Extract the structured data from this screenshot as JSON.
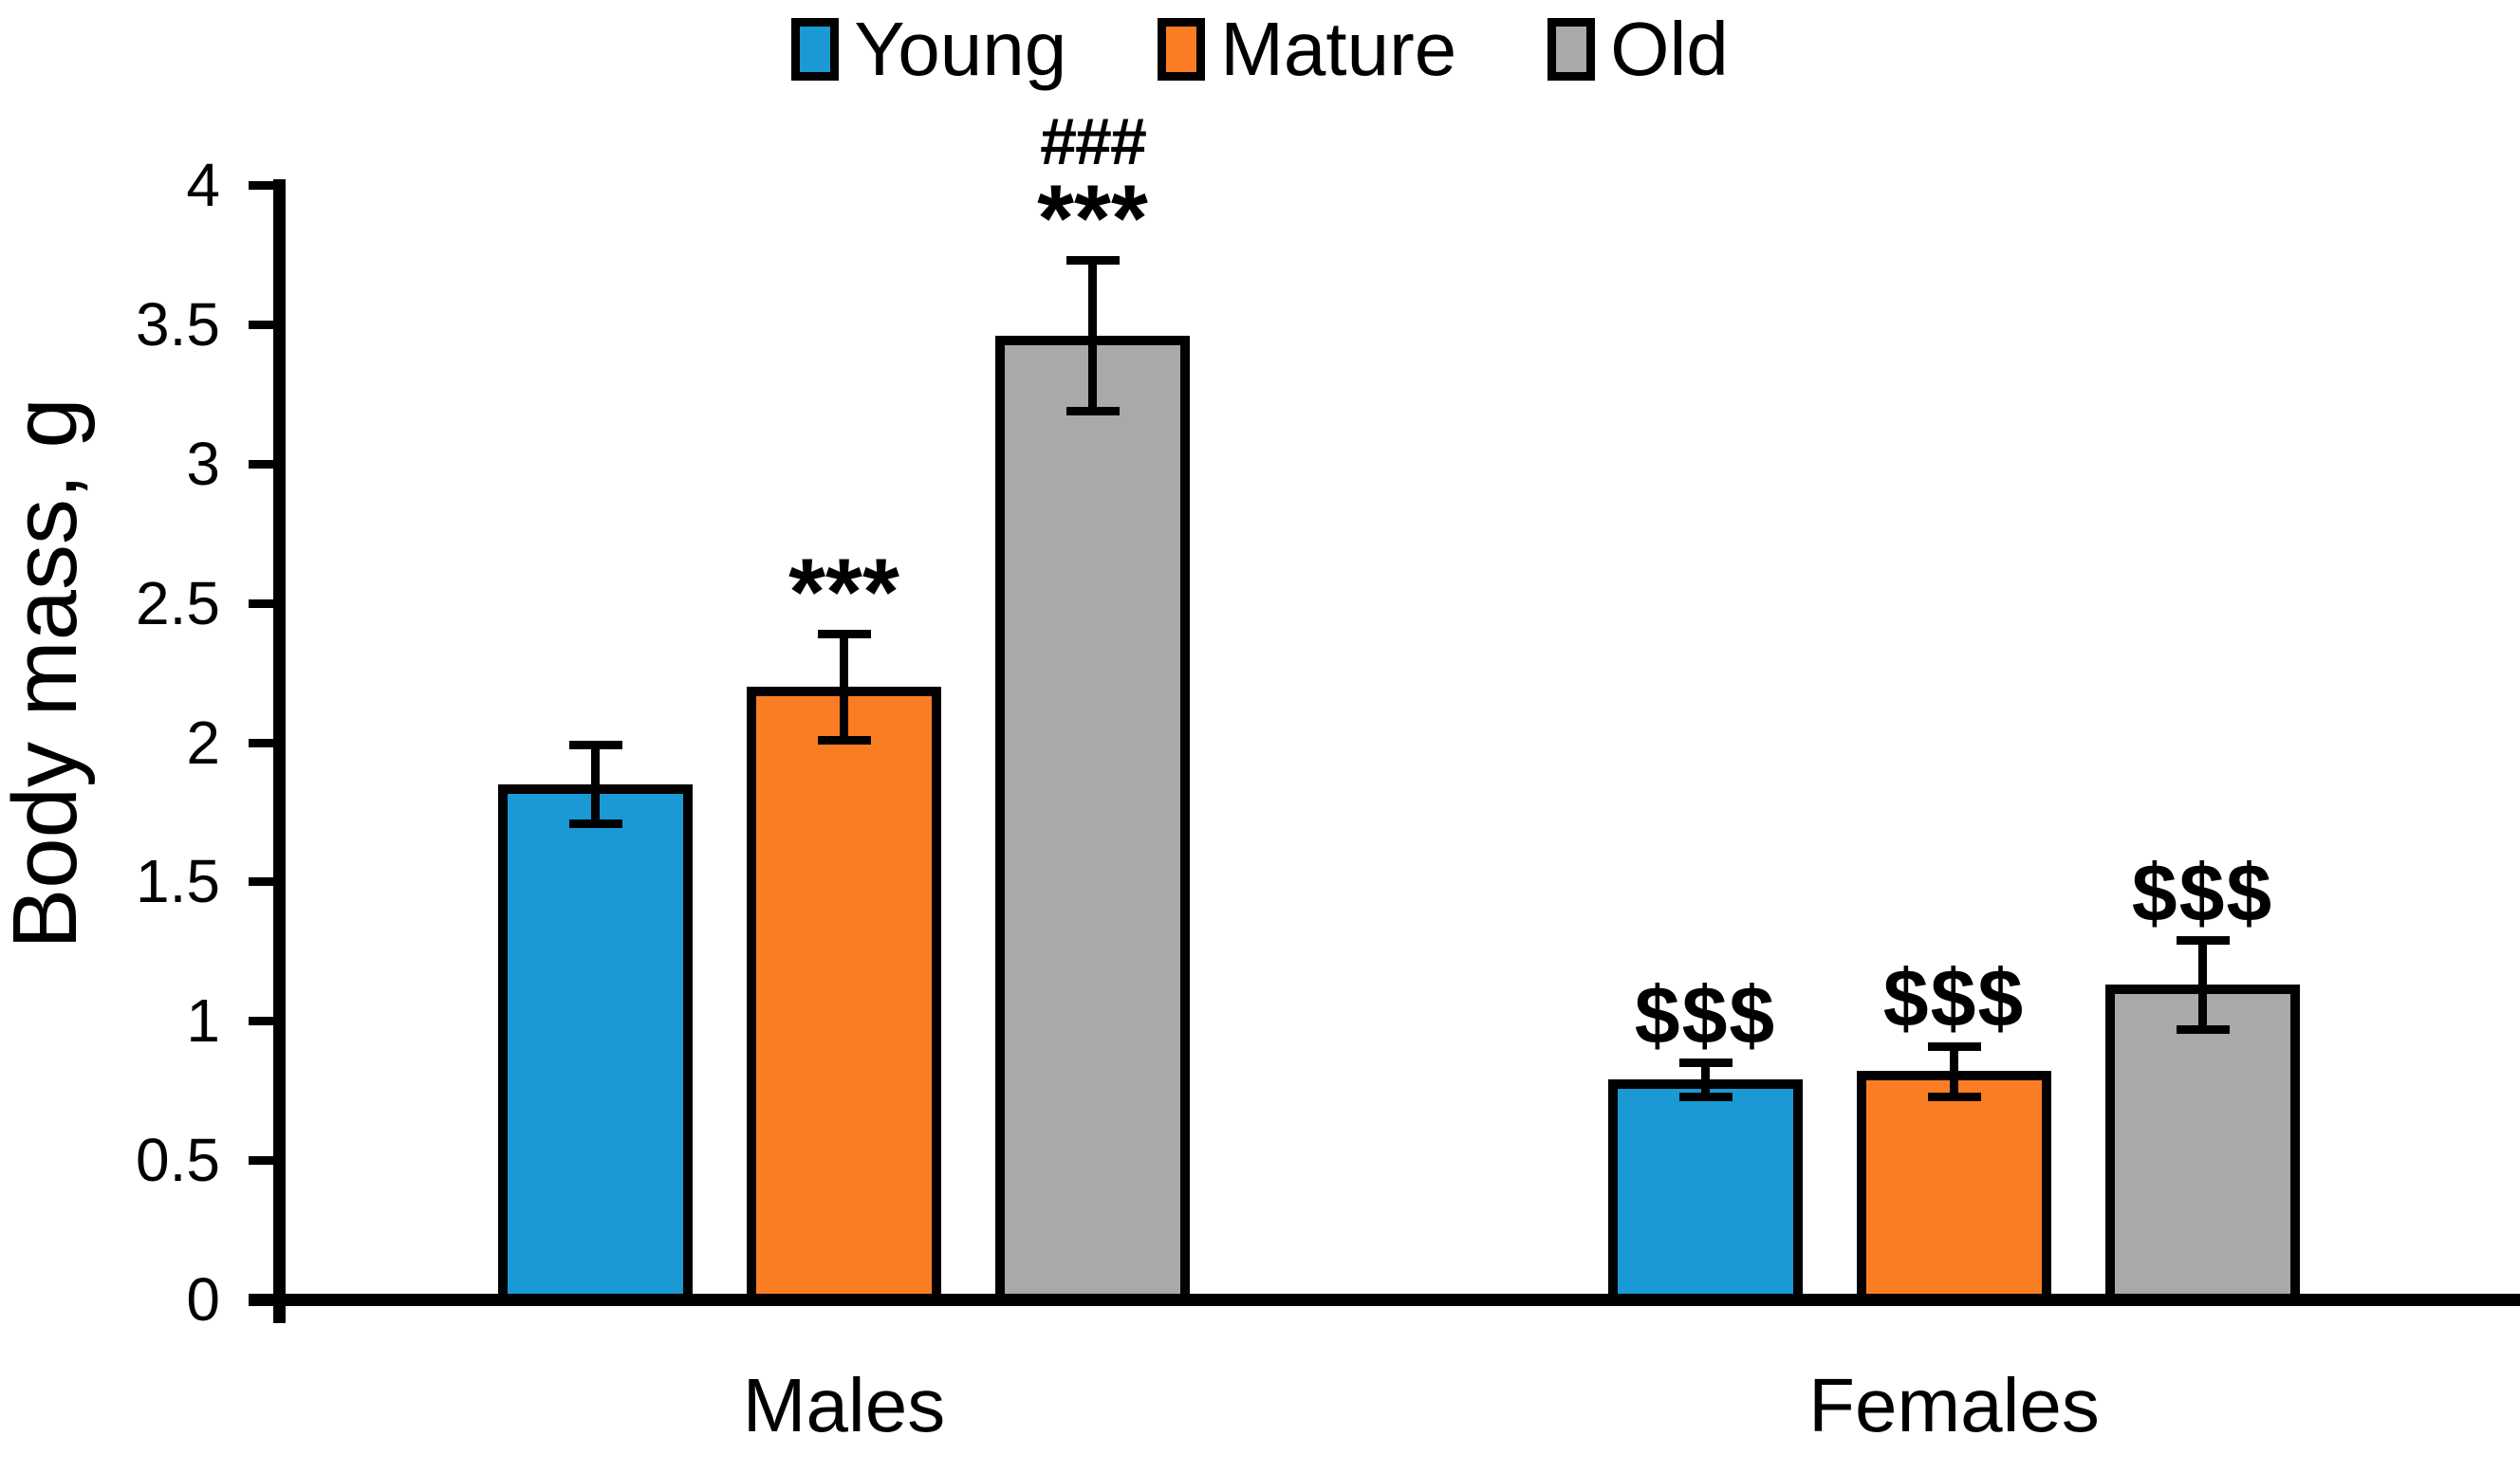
{
  "chart_data": {
    "type": "bar",
    "title": "",
    "xlabel": "",
    "ylabel": "Body mass, g",
    "ylim": [
      0,
      4
    ],
    "yticks": [
      "0",
      "0.5",
      "1",
      "1.5",
      "2",
      "2.5",
      "3",
      "3.5",
      "4"
    ],
    "grid": false,
    "legend_position": "top-center",
    "categories": [
      "Males",
      "Females"
    ],
    "series": [
      {
        "name": "Young",
        "color": "#1A99D5",
        "values": [
          1.85,
          0.79
        ],
        "errors": [
          0.14,
          0.06
        ],
        "annotations": [
          [],
          [
            "$$$"
          ]
        ]
      },
      {
        "name": "Mature",
        "color": "#FB7D23",
        "values": [
          2.2,
          0.82
        ],
        "errors": [
          0.19,
          0.09
        ],
        "annotations": [
          [
            "***"
          ],
          [
            "$$$"
          ]
        ]
      },
      {
        "name": "Old",
        "color": "#A9A9A9",
        "values": [
          3.46,
          1.13
        ],
        "errors": [
          0.27,
          0.16
        ],
        "annotations": [
          [
            "###",
            "***"
          ],
          [
            "$$$"
          ]
        ]
      }
    ],
    "colors": {
      "bar_border": "#000000",
      "axis": "#000000",
      "background": "#ffffff"
    }
  }
}
